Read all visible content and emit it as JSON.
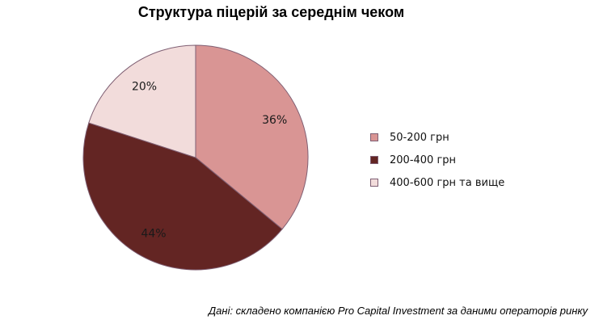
{
  "chart_data": {
    "type": "pie",
    "title": "Структура піцерій за середнім чеком",
    "categories": [
      "50-200 грн",
      "200-400 грн",
      "400-600 грн та вище"
    ],
    "values": [
      36,
      44,
      20
    ],
    "labels": [
      "36%",
      "44%",
      "20%"
    ],
    "colors": [
      "#d99594",
      "#632523",
      "#f2dcdb"
    ],
    "edge_color": "#7f5f73",
    "legend": "right",
    "source": "Дані: складено компанією Pro Capital Investment за даними операторів ринку"
  }
}
